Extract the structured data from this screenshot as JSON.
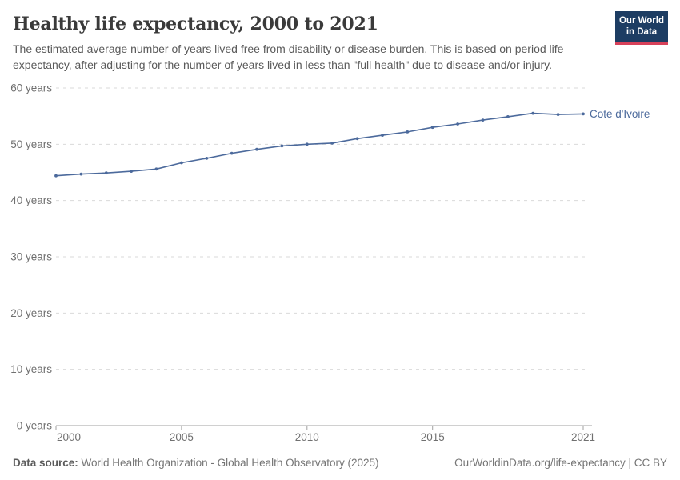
{
  "header": {
    "title": "Healthy life expectancy, 2000 to 2021",
    "subtitle": "The estimated average number of years lived free from disability or disease burden. This is based on period life expectancy, after adjusting for the number of years lived in less than \"full health\" due to disease and/or injury.",
    "logo": {
      "line1": "Our World",
      "line2": "in Data",
      "bg_color": "#1d3d63",
      "accent_color": "#d7415a"
    }
  },
  "chart_data": {
    "type": "line",
    "title": "Healthy life expectancy, 2000 to 2021",
    "x": [
      2000,
      2001,
      2002,
      2003,
      2004,
      2005,
      2006,
      2007,
      2008,
      2009,
      2010,
      2011,
      2012,
      2013,
      2014,
      2015,
      2016,
      2017,
      2018,
      2019,
      2020,
      2021
    ],
    "series": [
      {
        "name": "Cote d'Ivoire",
        "color": "#4c6a9c",
        "values": [
          44.4,
          44.7,
          44.9,
          45.2,
          45.6,
          46.7,
          47.5,
          48.4,
          49.1,
          49.7,
          50.0,
          50.2,
          51.0,
          51.6,
          52.2,
          53.0,
          53.6,
          54.3,
          54.9,
          55.5,
          55.3,
          55.4
        ]
      }
    ],
    "xlabel": "",
    "ylabel": "",
    "xlim": [
      2000,
      2021
    ],
    "ylim": [
      0,
      60
    ],
    "xticks": [
      {
        "value": 2000,
        "label": "2000"
      },
      {
        "value": 2005,
        "label": "2005"
      },
      {
        "value": 2010,
        "label": "2010"
      },
      {
        "value": 2015,
        "label": "2015"
      },
      {
        "value": 2021,
        "label": "2021"
      }
    ],
    "yticks": [
      {
        "value": 0,
        "label": "0 years"
      },
      {
        "value": 10,
        "label": "10 years"
      },
      {
        "value": 20,
        "label": "20 years"
      },
      {
        "value": 30,
        "label": "30 years"
      },
      {
        "value": 40,
        "label": "40 years"
      },
      {
        "value": 50,
        "label": "50 years"
      },
      {
        "value": 60,
        "label": "60 years"
      }
    ],
    "grid": "horizontal-dashed",
    "legend_position": "end-of-line-label",
    "colors": {
      "gridline": "#d9d9d9",
      "axis": "#a1a1a1",
      "tick_label": "#707070"
    }
  },
  "footer": {
    "datasource_label": "Data source:",
    "datasource_value": "World Health Organization - Global Health Observatory (2025)",
    "link": "OurWorldinData.org/life-expectancy | CC BY"
  }
}
